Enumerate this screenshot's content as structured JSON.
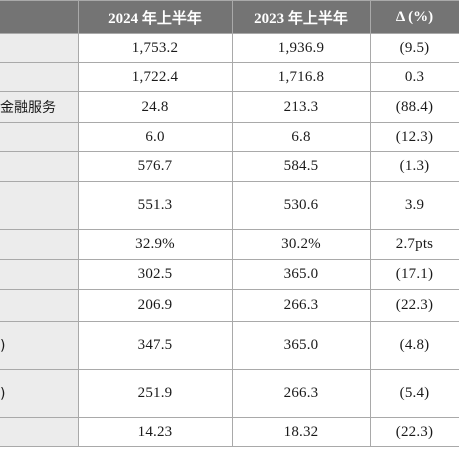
{
  "header": {
    "label": "",
    "col1": "2024 年上半年",
    "col2": "2023 年上半年",
    "col3": "Δ (%)"
  },
  "rows": [
    {
      "label": "",
      "v1": "1,753.2",
      "v2": "1,936.9",
      "v3": "(9.5)"
    },
    {
      "label": "",
      "v1": "1,722.4",
      "v2": "1,716.8",
      "v3": "0.3"
    },
    {
      "label": "金融服务",
      "v1": "24.8",
      "v2": "213.3",
      "v3": "(88.4)"
    },
    {
      "label": "",
      "v1": "6.0",
      "v2": "6.8",
      "v3": "(12.3)"
    },
    {
      "label": "",
      "v1": "576.7",
      "v2": "584.5",
      "v3": "(1.3)"
    },
    {
      "label": "",
      "v1": "551.3",
      "v2": "530.6",
      "v3": "3.9"
    },
    {
      "label": "",
      "v1": "32.9%",
      "v2": "30.2%",
      "v3": "2.7pts"
    },
    {
      "label": "",
      "v1": "302.5",
      "v2": "365.0",
      "v3": "(17.1)"
    },
    {
      "label": "",
      "v1": "206.9",
      "v2": "266.3",
      "v3": "(22.3)"
    },
    {
      "label": ")",
      "v1": "347.5",
      "v2": "365.0",
      "v3": "(4.8)"
    },
    {
      "label": ")",
      "v1": "251.9",
      "v2": "266.3",
      "v3": "(5.4)"
    },
    {
      "label": "",
      "v1": "14.23",
      "v2": "18.32",
      "v3": "(22.3)"
    }
  ]
}
